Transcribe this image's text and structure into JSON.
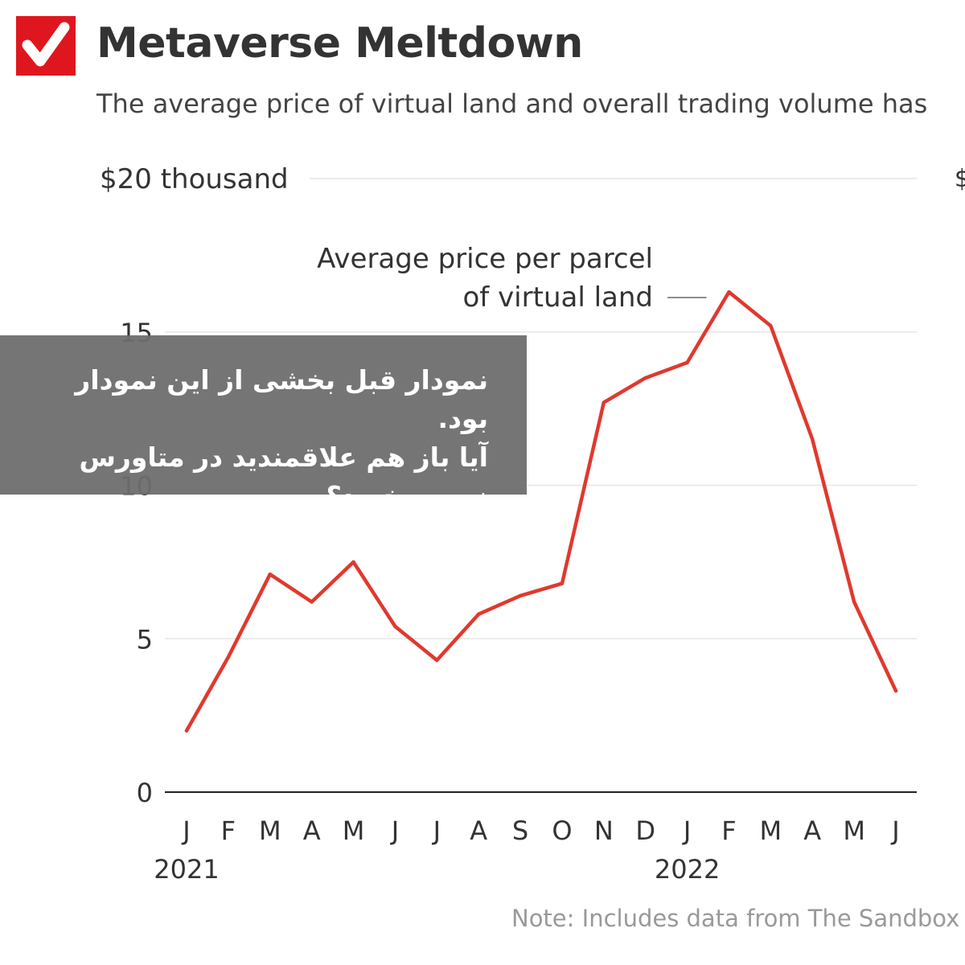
{
  "header": {
    "title": "Metaverse Meltdown",
    "subtitle": "The average price of virtual land and overall trading volume has",
    "edge_mark": "$"
  },
  "brand": {
    "logo_icon": "checkmark-icon",
    "color": "#e0161e"
  },
  "overlay": {
    "line1": "نمودار قبل بخشی از این نمودار بود.",
    "line2": "آیا باز هم علاقمندید در متاورس",
    "line3": "زمین بخرید؟"
  },
  "note": "Note: Includes data from The Sandbox",
  "chart_data": {
    "type": "line",
    "title": "Metaverse Meltdown",
    "series": [
      {
        "label_line1": "Average price per parcel",
        "label_line2": "of virtual land",
        "color": "#e0392e",
        "values": [
          2.0,
          4.4,
          7.1,
          6.2,
          7.5,
          5.4,
          4.3,
          5.8,
          6.4,
          6.8,
          12.7,
          13.5,
          14.0,
          16.3,
          15.2,
          11.5,
          6.2,
          3.3
        ]
      }
    ],
    "categories": [
      "J",
      "F",
      "M",
      "A",
      "M",
      "J",
      "J",
      "A",
      "S",
      "O",
      "N",
      "D",
      "J",
      "F",
      "M",
      "A",
      "M",
      "J"
    ],
    "year_labels": [
      {
        "index": 0,
        "label": "2021"
      },
      {
        "index": 12,
        "label": "2022"
      }
    ],
    "y_ticks": [
      {
        "value": 0,
        "label": "0"
      },
      {
        "value": 5,
        "label": "5"
      },
      {
        "value": 10,
        "label": "10"
      },
      {
        "value": 15,
        "label": "15"
      },
      {
        "value": 20,
        "label": "$20 thousand"
      }
    ],
    "ylim": [
      0,
      20
    ],
    "grid": true
  }
}
